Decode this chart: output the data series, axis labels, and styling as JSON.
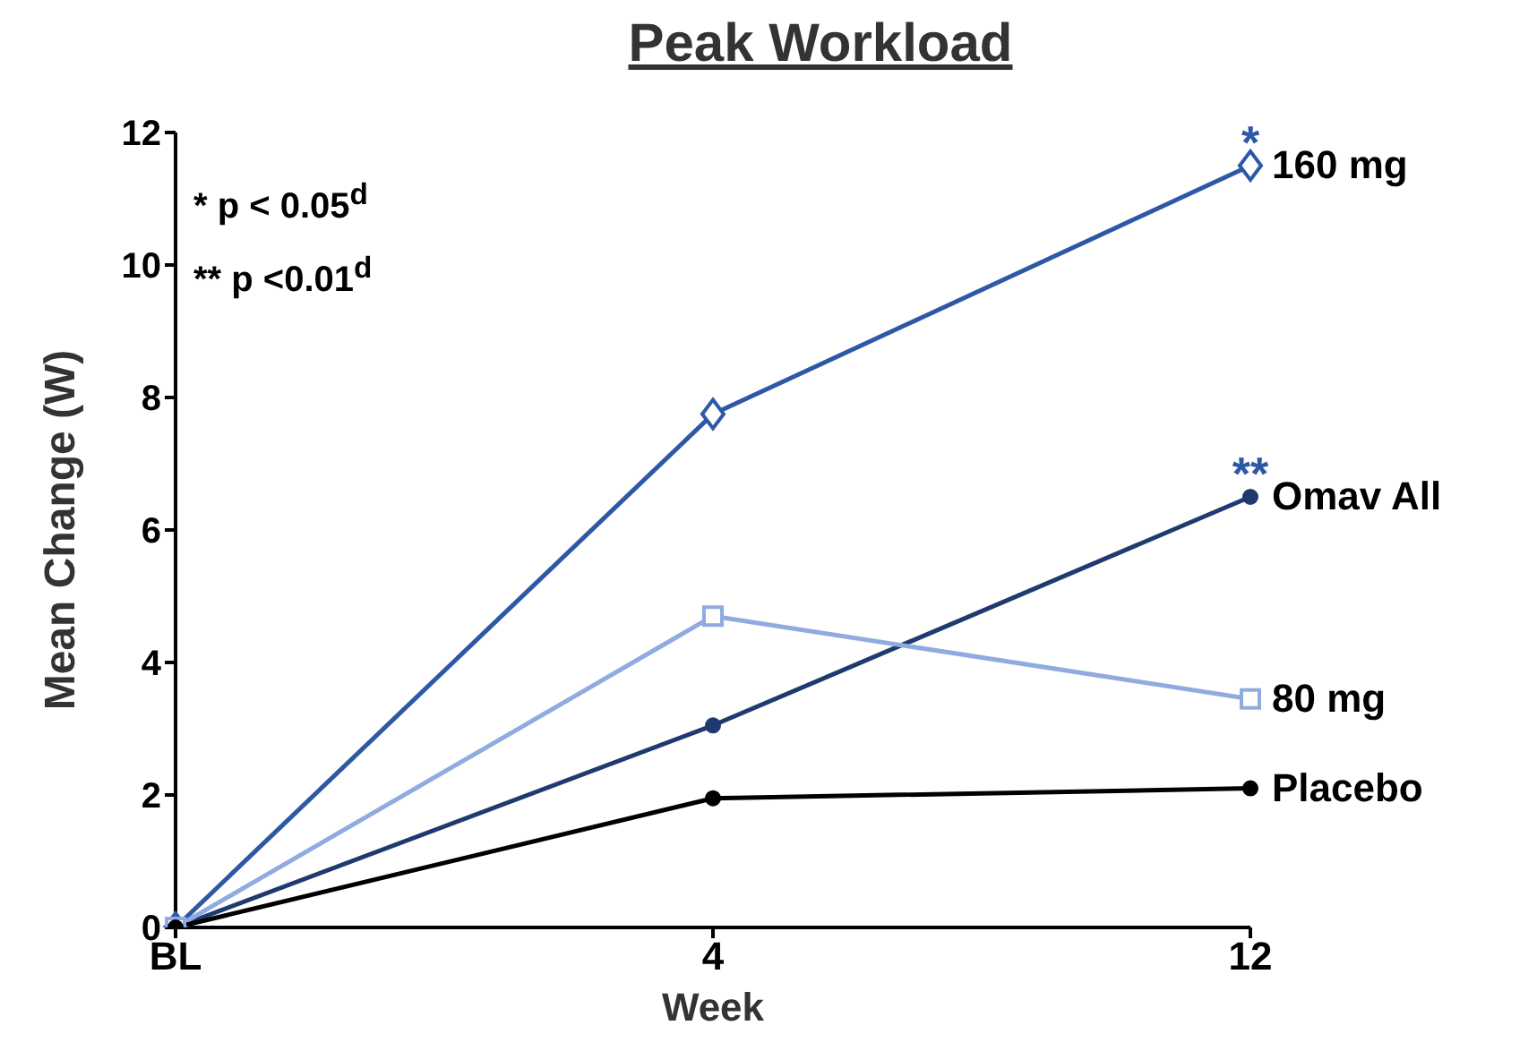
{
  "chart_data": {
    "type": "line",
    "title": "Peak Workload",
    "xlabel": "Week",
    "ylabel": "Mean Change (W)",
    "categories": [
      "BL",
      "4",
      "12"
    ],
    "series": [
      {
        "name": "160 mg",
        "color": "#2e58a6",
        "marker": "diamond",
        "values": [
          0,
          7.75,
          11.5
        ]
      },
      {
        "name": "Omav All",
        "color": "#1f3a6e",
        "marker": "circle",
        "values": [
          0,
          3.05,
          6.5
        ]
      },
      {
        "name": "80 mg",
        "color": "#8fabdf",
        "marker": "square",
        "values": [
          0,
          4.7,
          3.45
        ]
      },
      {
        "name": "Placebo",
        "color": "#000000",
        "marker": "circle",
        "values": [
          0,
          1.95,
          2.1
        ]
      }
    ],
    "ylim": [
      0,
      12
    ],
    "yticks": [
      0,
      2,
      4,
      6,
      8,
      10,
      12
    ],
    "grid": false,
    "legend": false,
    "line_style": "solid",
    "annotations": [
      "* p < 0.05$^{d}$",
      "** p <0.01$^{d}$",
      {
        "text": "*",
        "x": "12",
        "y": 11.5
      },
      {
        "text": "**",
        "x": "12",
        "y": 6.5
      }
    ]
  }
}
